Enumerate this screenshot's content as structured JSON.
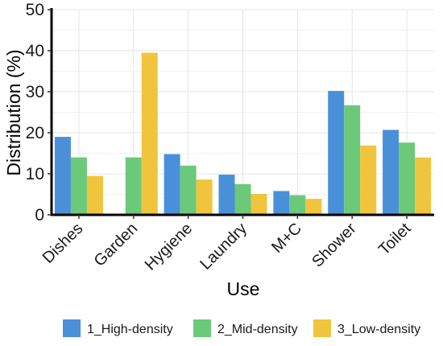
{
  "chart_data": {
    "type": "bar",
    "title": "",
    "xlabel": "Use",
    "ylabel": "Distribution (%)",
    "ylim": [
      0,
      50
    ],
    "yticks": [
      0,
      10,
      20,
      30,
      40,
      50
    ],
    "grid": true,
    "legend_position": "bottom",
    "categories": [
      "Dishes",
      "Garden",
      "Hygiene",
      "Laundry",
      "M+C",
      "Shower",
      "Toilet"
    ],
    "series": [
      {
        "name": "1_High-density",
        "color": "#4a90d9",
        "values": [
          19,
          null,
          14.8,
          9.8,
          5.8,
          30.2,
          20.7
        ]
      },
      {
        "name": "2_Mid-density",
        "color": "#6cc97a",
        "values": [
          14,
          14,
          12,
          7.5,
          4.8,
          26.7,
          17.6
        ]
      },
      {
        "name": "3_Low-density",
        "color": "#f0c43c",
        "values": [
          9.5,
          39.5,
          8.6,
          5.1,
          3.9,
          16.9,
          14
        ]
      }
    ]
  }
}
